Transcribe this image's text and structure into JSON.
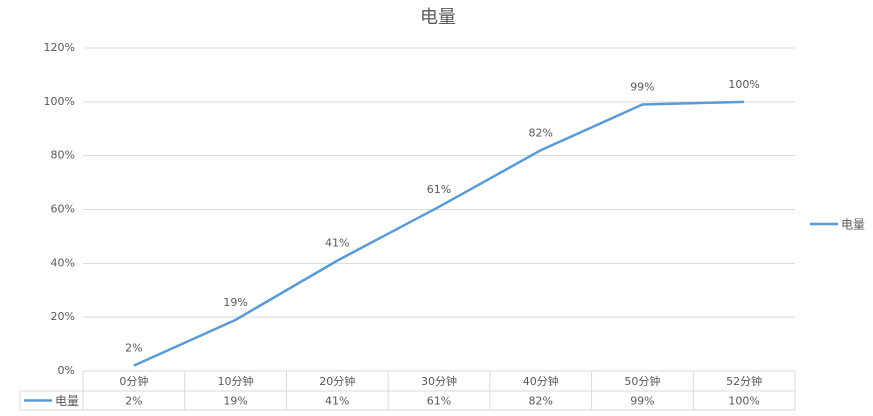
{
  "chart_data": {
    "type": "line",
    "title": "电量",
    "categories": [
      "0分钟",
      "10分钟",
      "20分钟",
      "30分钟",
      "40分钟",
      "50分钟",
      "52分钟"
    ],
    "series": [
      {
        "name": "电量",
        "color": "#5b9bd5",
        "values": [
          2,
          19,
          41,
          61,
          82,
          99,
          100
        ],
        "value_labels": [
          "2%",
          "19%",
          "41%",
          "61%",
          "82%",
          "99%",
          "100%"
        ]
      }
    ],
    "ylim": [
      0,
      120
    ],
    "yticks": [
      {
        "value": 0,
        "label": "0%"
      },
      {
        "value": 20,
        "label": "20%"
      },
      {
        "value": 40,
        "label": "40%"
      },
      {
        "value": 60,
        "label": "60%"
      },
      {
        "value": 80,
        "label": "80%"
      },
      {
        "value": 100,
        "label": "100%"
      },
      {
        "value": 120,
        "label": "120%"
      }
    ],
    "grid": true,
    "legend": "right"
  }
}
